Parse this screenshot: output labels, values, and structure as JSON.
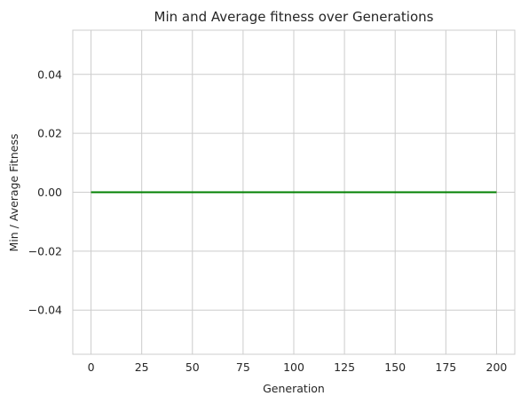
{
  "chart_data": {
    "type": "line",
    "title": "Min and Average fitness over Generations",
    "xlabel": "Generation",
    "ylabel": "Min / Average Fitness",
    "xlim": [
      -9,
      209
    ],
    "ylim": [
      -0.055,
      0.055
    ],
    "xticks": [
      0,
      25,
      50,
      75,
      100,
      125,
      150,
      175,
      200
    ],
    "xtick_labels": [
      "0",
      "25",
      "50",
      "75",
      "100",
      "125",
      "150",
      "175",
      "200"
    ],
    "yticks": [
      -0.04,
      -0.02,
      0.0,
      0.02,
      0.04
    ],
    "ytick_labels": [
      "−0.04",
      "−0.02",
      "0.00",
      "0.02",
      "0.04"
    ],
    "grid": true,
    "series": [
      {
        "color": "#ff0000",
        "x": [
          0,
          200
        ],
        "y": [
          0,
          0
        ]
      },
      {
        "color": "#008000",
        "x": [
          0,
          200
        ],
        "y": [
          0,
          0
        ]
      }
    ]
  }
}
